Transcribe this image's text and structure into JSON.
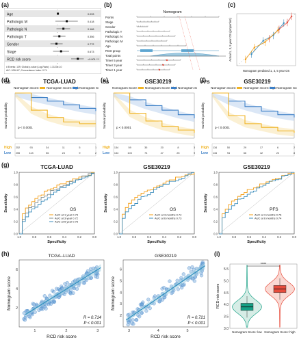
{
  "panel_labels": [
    "(a)",
    "(b)",
    "(c)",
    "(d)",
    "(e)",
    "(f)",
    "(g)",
    "(h)",
    "(i)"
  ],
  "chart_data": [
    {
      "id": "a",
      "type": "forest",
      "rows": [
        {
          "label": "Age",
          "hr": 1.02,
          "ci": [
            1.0,
            1.04
          ],
          "p": "0.033"
        },
        {
          "label": "Pathologic M",
          "hr": 1.6,
          "ci": [
            0.9,
            2.8
          ],
          "p": "0.418"
        },
        {
          "label": "Pathologic N",
          "hr": 1.35,
          "ci": [
            0.95,
            1.9
          ],
          "p": "0.166"
        },
        {
          "label": "Pathologic T",
          "hr": 1.1,
          "ci": [
            0.8,
            1.5
          ],
          "p": "0.356"
        },
        {
          "label": "Gender",
          "hr": 0.95,
          "ci": [
            0.7,
            1.3
          ],
          "p": "0.772"
        },
        {
          "label": "Stage",
          "hr": 1.2,
          "ci": [
            0.8,
            1.8
          ],
          "p": "0.673"
        },
        {
          "label": "RCD risk score",
          "hr": 2.8,
          "ci": [
            2.0,
            3.8
          ],
          "p": "<0.001 ***"
        }
      ],
      "footer": [
        "# Events: 139; Global p-value (Log-Rank): 1.3123e-10",
        "AIC: 1096.67; Concordance Index: 0.74"
      ]
    },
    {
      "id": "b",
      "type": "nomogram",
      "title": "Nomogram",
      "rows": [
        "Points",
        "Stage",
        "Gender",
        "Pathologic T",
        "Pathologic N",
        "Pathologic M",
        "Age",
        "RCD group",
        "Total points",
        "Timer 5 year",
        "Timer 3 year",
        "Timer 1 year"
      ]
    },
    {
      "id": "c",
      "type": "calibration",
      "xlabel": "Nomogram predicted 1, 3, 5 year OS",
      "ylabel": "Actual 1, 3, 5 year OS (proportion)",
      "series": [
        {
          "color": "#e74c3c",
          "x": [
            0.55,
            0.72,
            0.86,
            0.93
          ],
          "y": [
            0.52,
            0.7,
            0.83,
            0.95
          ]
        },
        {
          "color": "#3c8dbc",
          "x": [
            0.25,
            0.45,
            0.62,
            0.8
          ],
          "y": [
            0.22,
            0.48,
            0.58,
            0.82
          ]
        },
        {
          "color": "#f39c12",
          "x": [
            0.15,
            0.3,
            0.48,
            0.7
          ],
          "y": [
            0.12,
            0.35,
            0.45,
            0.68
          ]
        }
      ]
    },
    {
      "id": "d",
      "type": "km",
      "tag": "OS",
      "title": "TCGA-LUAD",
      "legend_prefix": "Nomogram Score",
      "high": "high",
      "low": "low",
      "ylabel": "Survival probability",
      "pval": "p < 0.0001",
      "x": [
        0,
        1,
        2,
        3,
        4,
        5
      ],
      "high_values": [
        1,
        0.62,
        0.46,
        0.36,
        0.32,
        0.32
      ],
      "low_values": [
        1,
        0.9,
        0.82,
        0.74,
        0.66,
        0.6
      ],
      "risk_high": [
        "252",
        "93",
        "34",
        "11",
        "5",
        "1"
      ],
      "risk_low": [
        "255",
        "113",
        "56",
        "24",
        "9",
        "2"
      ]
    },
    {
      "id": "e",
      "type": "km",
      "tag": "OS",
      "title": "GSE30219",
      "legend_prefix": "Nomogram Score",
      "high": "high",
      "low": "low",
      "ylabel": "Survival probability",
      "pval": "p < 0.0001",
      "x": [
        0,
        1,
        2,
        3,
        4,
        5
      ],
      "high_values": [
        1,
        0.55,
        0.38,
        0.26,
        0.18,
        0.12
      ],
      "low_values": [
        1,
        0.85,
        0.72,
        0.62,
        0.52,
        0.44
      ],
      "risk_high": [
        "134",
        "59",
        "35",
        "20",
        "8",
        "3"
      ],
      "risk_low": [
        "134",
        "103",
        "74",
        "47",
        "25",
        "9"
      ]
    },
    {
      "id": "f",
      "type": "km",
      "tag": "PFS",
      "title": "GSE30219",
      "legend_prefix": "Nomogram Score",
      "high": "high",
      "low": "low",
      "ylabel": "Survival probability",
      "pval": "p < 0.0001",
      "x": [
        0,
        1,
        2,
        3,
        4,
        5
      ],
      "high_values": [
        1,
        0.5,
        0.32,
        0.24,
        0.16,
        0.12
      ],
      "low_values": [
        1,
        0.82,
        0.7,
        0.6,
        0.52,
        0.46
      ],
      "risk_high": [
        "134",
        "50",
        "29",
        "17",
        "6",
        "2"
      ],
      "risk_low": [
        "134",
        "94",
        "66",
        "42",
        "22",
        "8"
      ]
    },
    {
      "id": "g1",
      "type": "roc",
      "title": "TCGA-LUAD",
      "xlabel": "Specificity",
      "ylabel": "Sensitivity",
      "legend_title": "OS",
      "entries": [
        {
          "label": "AUC at 1 year 0.73",
          "color": "#f39c12"
        },
        {
          "label": "AUC at 3 year 0.72",
          "color": "#7f8c8d"
        },
        {
          "label": "AUC at 5 year 0.75",
          "color": "#3c8dbc"
        }
      ]
    },
    {
      "id": "g2",
      "type": "roc",
      "title": "GSE30219",
      "xlabel": "Specificity",
      "ylabel": "Sensitivity",
      "legend_title": "OS",
      "entries": [
        {
          "label": "AUC at 3 months 0.74",
          "color": "#f39c12"
        },
        {
          "label": "AUC at 6 months 0.73",
          "color": "#3c8dbc"
        }
      ]
    },
    {
      "id": "g3",
      "type": "roc",
      "title": "GSE30219",
      "xlabel": "Specificity",
      "ylabel": "Sensitivity",
      "legend_title": "PFS",
      "entries": [
        {
          "label": "AUC at 3 months 0.76",
          "color": "#f39c12"
        },
        {
          "label": "AUC at 6 months 0.74",
          "color": "#3c8dbc"
        }
      ]
    },
    {
      "id": "h1",
      "type": "scatter",
      "title": "TCGA–LUAD",
      "xlabel": "RCD risk score",
      "ylabel": "Nomogram score",
      "xlim": [
        0.5,
        3.2
      ],
      "ylim": [
        0,
        7
      ],
      "xticks": [
        1,
        2,
        3
      ],
      "yticks": [
        2,
        4,
        6
      ],
      "r": "R = 0.714",
      "p": "P < 0.001",
      "line": [
        [
          0.7,
          1.3
        ],
        [
          3.1,
          6.2
        ]
      ]
    },
    {
      "id": "h2",
      "type": "scatter",
      "title": "GSE30219",
      "xlabel": "RCD risk score",
      "ylabel": "Nomogram score",
      "xlim": [
        2.8,
        5.7
      ],
      "ylim": [
        1,
        6.8
      ],
      "xticks": [
        3,
        4,
        5
      ],
      "yticks": [
        2,
        3,
        4,
        5,
        6
      ],
      "r": "R = 0.721",
      "p": "P < 0.001",
      "line": [
        [
          2.9,
          1.6
        ],
        [
          5.6,
          6.3
        ]
      ]
    },
    {
      "id": "i",
      "type": "violin",
      "ylabel": "RCD risk score",
      "ylim": [
        3.0,
        5.7
      ],
      "yticks": [
        "3.0",
        "3.5",
        "4.0",
        "4.5",
        "5.0",
        "5.5"
      ],
      "sig": "****",
      "groups": [
        {
          "name": "Nomogram Score: low",
          "color": "#16a085",
          "fill": "#d6ede6",
          "median": 3.9,
          "q1": 3.75,
          "q3": 4.05
        },
        {
          "name": "Nomogram Score: high",
          "color": "#e74c3c",
          "fill": "#fad9d3",
          "median": 4.65,
          "q1": 4.5,
          "q3": 4.8
        }
      ]
    }
  ]
}
